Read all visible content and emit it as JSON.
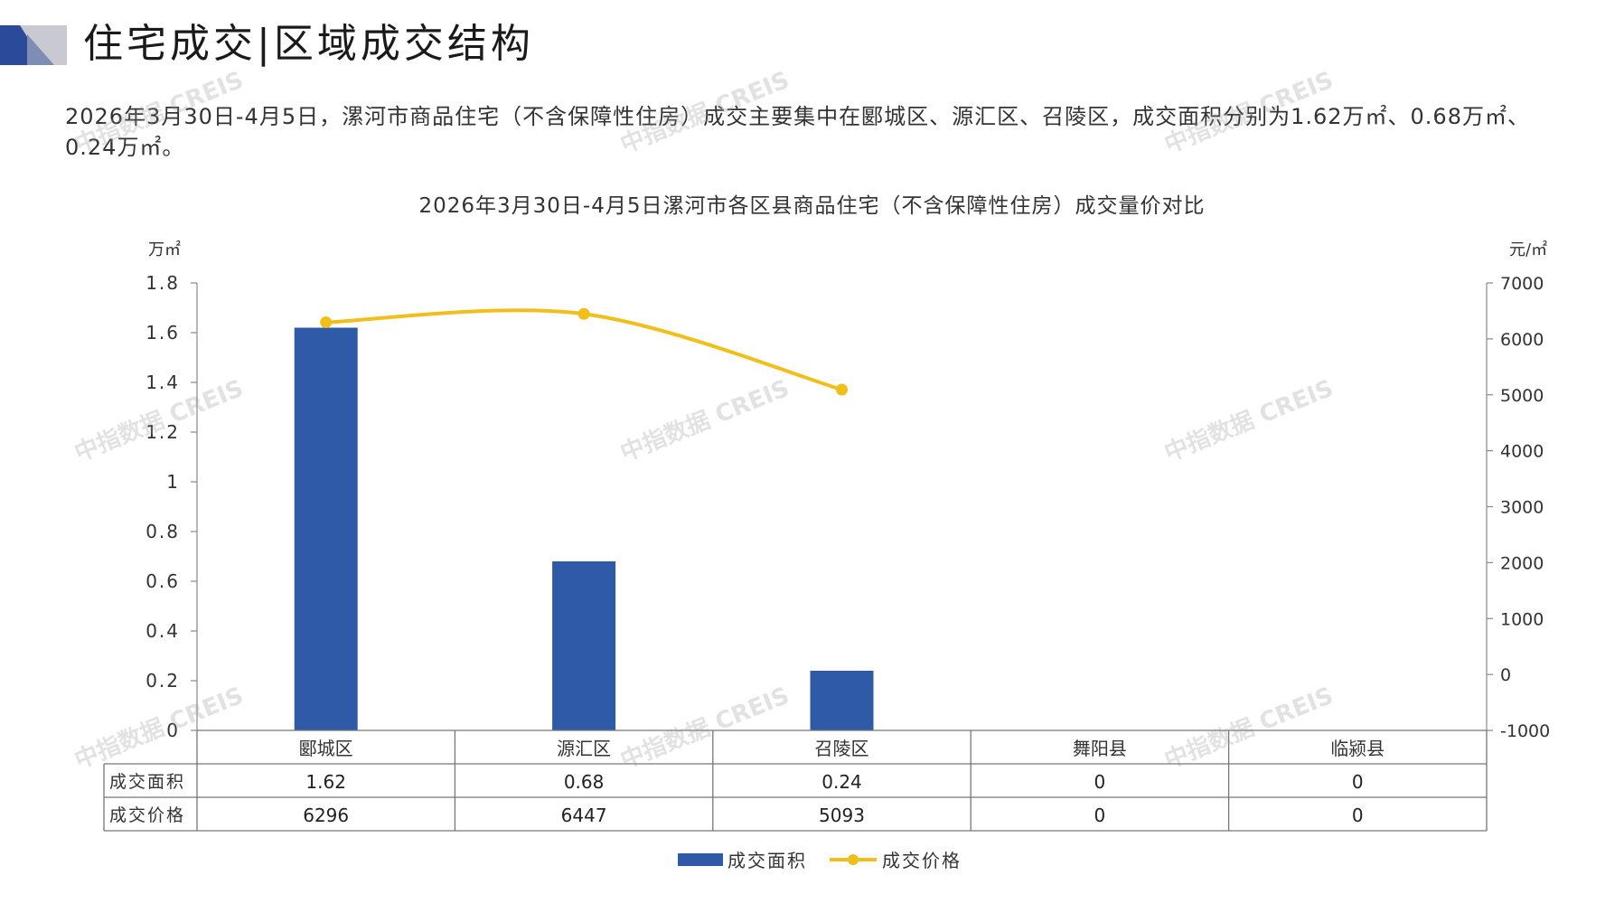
{
  "header": {
    "title": "住宅成交|区域成交结构",
    "summary": "2026年3月30日-4月5日，漯河市商品住宅（不含保障性住房）成交主要集中在郾城区、源汇区、召陵区，成交面积分别为1.62万㎡、0.68万㎡、0.24万㎡。"
  },
  "watermark": "中指数据 CREIS",
  "colors": {
    "bar": "#2e5aa8",
    "line": "#f2be1a",
    "logo_dark": "#2b4a9a",
    "logo_light": "#c8c8d0"
  },
  "chart_data": {
    "type": "bar",
    "title": "2026年3月30日-4月5日漯河市各区县商品住宅（不含保障性住房）成交量价对比",
    "categories": [
      "郾城区",
      "源汇区",
      "召陵区",
      "舞阳县",
      "临颍县"
    ],
    "left_axis": {
      "unit": "万㎡",
      "range": [
        0,
        1.8
      ],
      "ticks": [
        "0",
        "0.2",
        "0.4",
        "0.6",
        "0.8",
        "1",
        "1.2",
        "1.4",
        "1.6",
        "1.8"
      ]
    },
    "right_axis": {
      "unit": "元/㎡",
      "range": [
        -1000,
        7000
      ],
      "ticks": [
        "-1000",
        "0",
        "1000",
        "2000",
        "3000",
        "4000",
        "5000",
        "6000",
        "7000"
      ]
    },
    "series": [
      {
        "name": "成交面积",
        "type": "bar",
        "axis": "left",
        "values": [
          1.62,
          0.68,
          0.24,
          0,
          0
        ],
        "labels": [
          "1.62",
          "0.68",
          "0.24",
          "0",
          "0"
        ]
      },
      {
        "name": "成交价格",
        "type": "line",
        "axis": "right",
        "values": [
          6296,
          6447,
          5093,
          0,
          0
        ],
        "labels": [
          "6296",
          "6447",
          "5093",
          "0",
          "0"
        ]
      }
    ],
    "line_plotted_count": 3,
    "legend": "bottom",
    "data_table": true
  }
}
